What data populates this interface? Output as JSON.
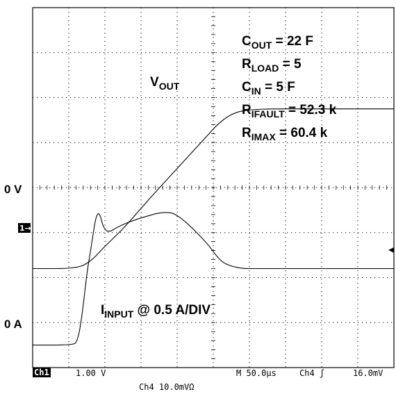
{
  "chart_data": {
    "type": "line",
    "title": "",
    "x": {
      "label": "",
      "time_per_div_us": 50,
      "divisions": 10,
      "ticks": []
    },
    "y": {
      "label": "",
      "divisions": 8
    },
    "grid": true,
    "legend_position": "none",
    "series": [
      {
        "key": "vout",
        "x_us": [
          0,
          60,
          80,
          100,
          120,
          140,
          160,
          180,
          200,
          220,
          240,
          260,
          280,
          300,
          320,
          340,
          360,
          380,
          400,
          500
        ],
        "y_div": [
          4.4,
          4.4,
          4.7,
          5.4,
          6.0,
          6.7,
          7.45,
          8.15,
          8.85,
          9.55,
          10.25,
          10.95,
          11.35,
          11.46,
          11.49,
          11.5,
          11.5,
          11.5,
          11.5,
          11.5
        ]
      },
      {
        "key": "iinput",
        "x_us": [
          0,
          55,
          62,
          68,
          75,
          80,
          90,
          100,
          120,
          140,
          160,
          180,
          200,
          240,
          260,
          275,
          290,
          300,
          320,
          345,
          380,
          500
        ],
        "y_div": [
          1.0,
          1.0,
          1.15,
          2.2,
          4.2,
          5.15,
          7.25,
          5.9,
          6.3,
          6.55,
          6.75,
          6.92,
          6.85,
          5.6,
          4.72,
          4.5,
          4.41,
          4.4,
          4.4,
          4.4,
          4.4,
          4.4
        ]
      }
    ],
    "labels": {
      "zero_v": "0 V",
      "zero_a": "0 A",
      "vout_main": "V",
      "vout_sub": "OUT",
      "iinput_main": "I",
      "iinput_sub": "INPUT",
      "iinput_tail": " @ 0.5 A/DIV"
    },
    "params": [
      {
        "main": "C",
        "sub": "OUT",
        "tail": " = 22   F"
      },
      {
        "main": "R",
        "sub": "LOAD",
        "tail": " = 5"
      },
      {
        "main": "C",
        "sub": "IN",
        "tail": " = 5   F"
      },
      {
        "main": "R",
        "sub": "IFAULT",
        "tail": " = 52.3 k"
      },
      {
        "main": "R",
        "sub": "IMAX",
        "tail": " = 60.4 k"
      }
    ],
    "ch1_marker": "1→",
    "trigger_marker": "◂",
    "status": {
      "ch1_label": "Ch1",
      "ch1_scale": "1.00 V",
      "timebase": "M 50.0μs",
      "trigger": "Ch4 ʃ",
      "trigger_level": "16.0mV",
      "ch4_scale": "Ch4  10.0mVΩ"
    }
  }
}
